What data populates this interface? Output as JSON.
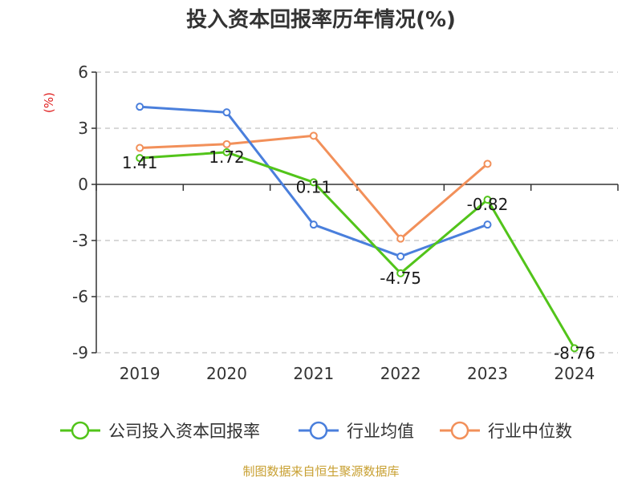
{
  "chart_data": {
    "type": "line",
    "title": "投入资本回报率历年情况(%)",
    "ylabel": "(%)",
    "xlabel": "",
    "categories": [
      "2019",
      "2020",
      "2021",
      "2022",
      "2023",
      "2024"
    ],
    "ylim": [
      -9,
      6
    ],
    "yticks": [
      6,
      3,
      0,
      -3,
      -6,
      -9
    ],
    "ytick_labels": [
      "6",
      "3",
      "0",
      "-3",
      "-6",
      "-9"
    ],
    "grid": true,
    "legend_position": "bottom",
    "series": [
      {
        "name": "公司投入资本回报率",
        "color": "#52c41a",
        "values": [
          1.41,
          1.72,
          0.11,
          -4.75,
          -0.82,
          -8.76
        ],
        "labels": [
          "1.41",
          "1.72",
          "0.11",
          "-4.75",
          "-0.82",
          "-8.76"
        ]
      },
      {
        "name": "行业均值",
        "color": "#4a7fdc",
        "values": [
          4.15,
          3.85,
          -2.15,
          -3.85,
          -2.15,
          null
        ]
      },
      {
        "name": "行业中位数",
        "color": "#f2905a",
        "values": [
          1.95,
          2.15,
          2.6,
          -2.9,
          1.1,
          null
        ]
      }
    ]
  },
  "source": "制图数据来自恒生聚源数据库"
}
